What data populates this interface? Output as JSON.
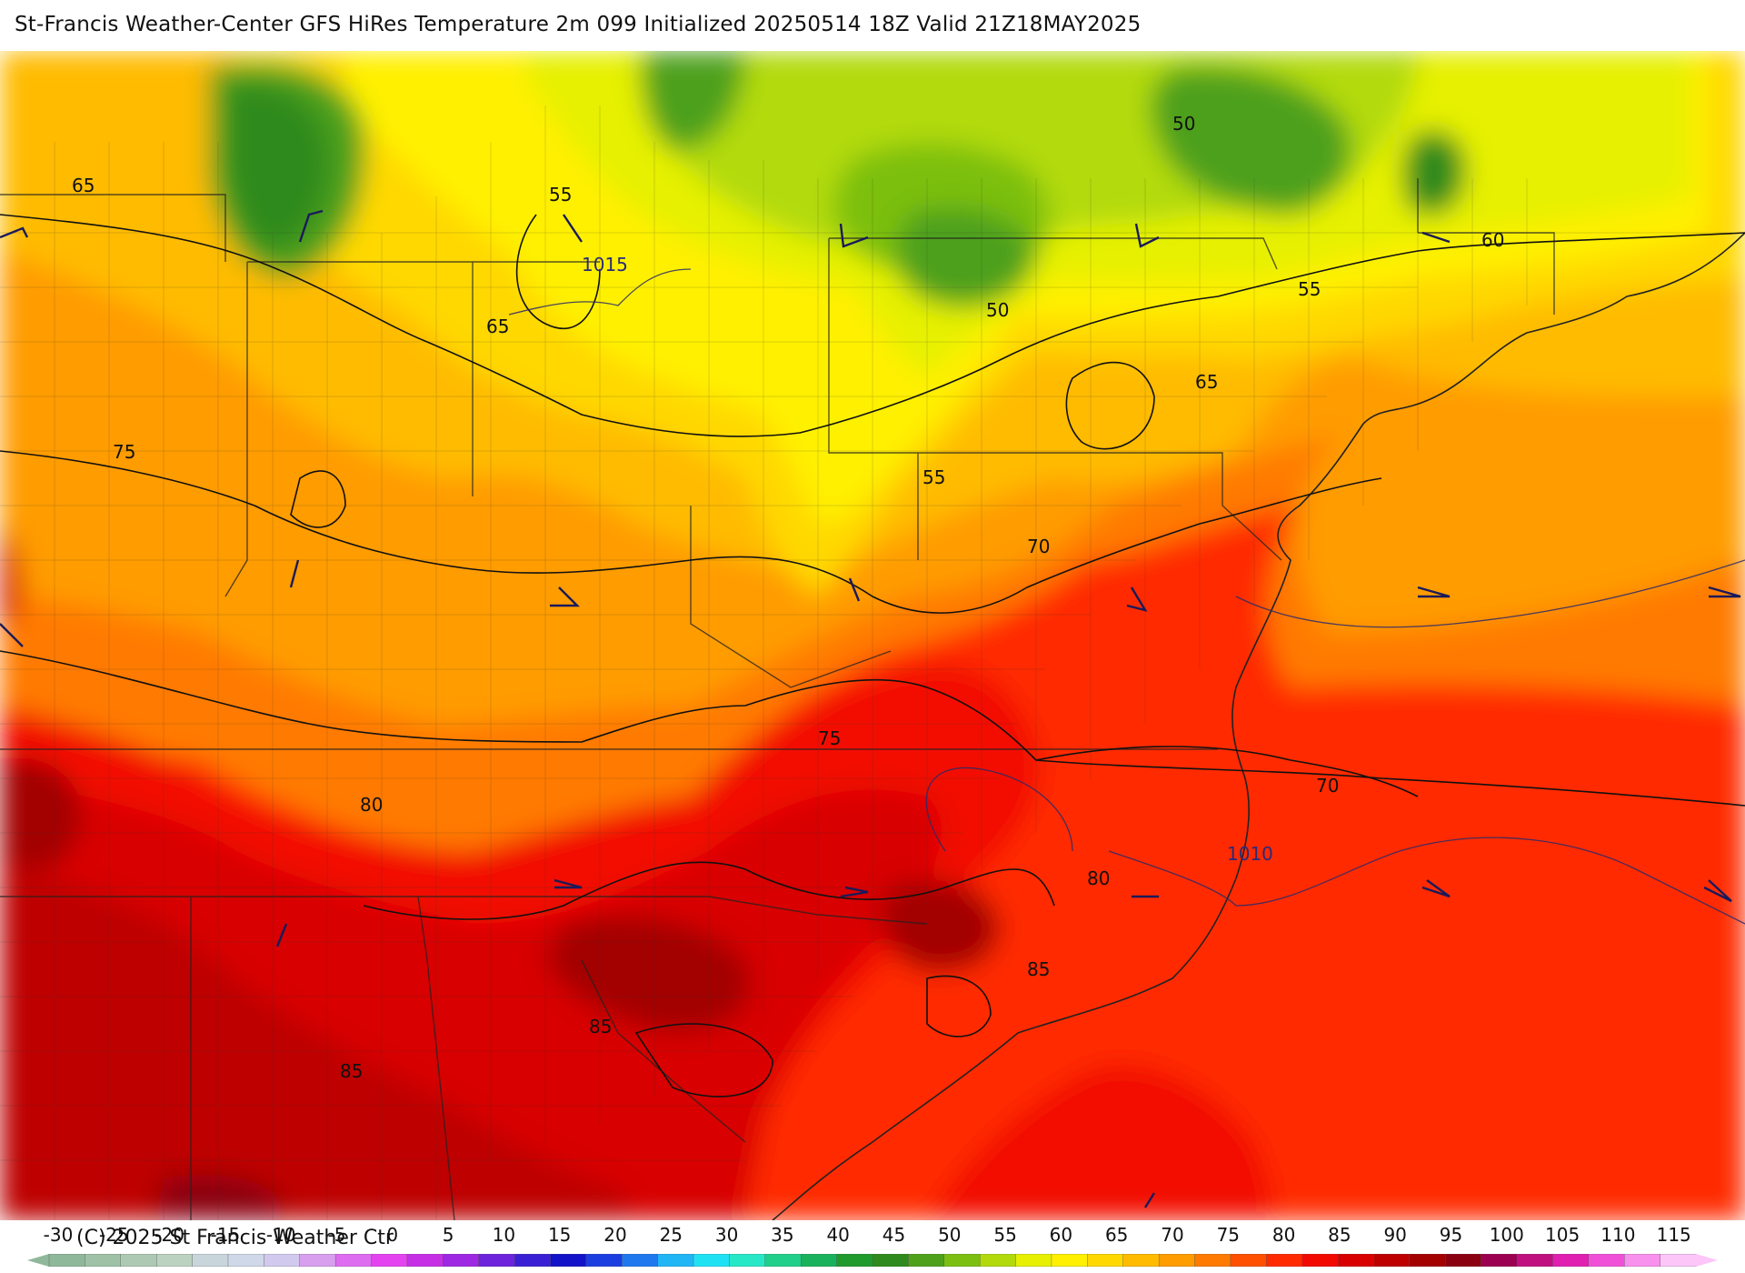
{
  "title": "St-Francis Weather-Center GFS HiRes Temperature 2m  099 Initialized 20250514 18Z Valid 21Z18MAY2025",
  "copyright": "(C) 2025 St Francis Weather Ctr",
  "colorbar": {
    "labels": [
      "-30",
      "-25",
      "-20",
      "-15",
      "-10",
      "-5",
      "0",
      "5",
      "10",
      "15",
      "20",
      "25",
      "30",
      "35",
      "40",
      "45",
      "50",
      "55",
      "60",
      "65",
      "70",
      "75",
      "80",
      "85",
      "90",
      "95",
      "100",
      "105",
      "110",
      "115"
    ],
    "colors": [
      "#8fb89a",
      "#9fc2a6",
      "#adc9b3",
      "#bcd2c1",
      "#c8d6dc",
      "#cfd8e8",
      "#d2c9ee",
      "#d79fee",
      "#de6cf0",
      "#e442f0",
      "#c62ee6",
      "#9d27e2",
      "#6d22dc",
      "#3a20d4",
      "#1212c8",
      "#1a3ee0",
      "#1f78ee",
      "#20b6f6",
      "#1ee2f4",
      "#26e8c6",
      "#1fcf8a",
      "#19b25c",
      "#1f9a2c",
      "#2e8a1c",
      "#4ea01a",
      "#7cbf10",
      "#b2da0a",
      "#e6f000",
      "#fff000",
      "#ffd800",
      "#ffbb00",
      "#ff9c00",
      "#ff7a00",
      "#ff5000",
      "#ff2a00",
      "#f20a00",
      "#d80000",
      "#be0000",
      "#a30000",
      "#8a0010",
      "#9c0050",
      "#c01080",
      "#e020b0",
      "#f050d8",
      "#f890ee",
      "#fcc6f8"
    ]
  },
  "contour_labels": [
    {
      "text": "65",
      "kind": "temperature"
    },
    {
      "text": "55",
      "kind": "temperature"
    },
    {
      "text": "1015",
      "kind": "isobar"
    },
    {
      "text": "65",
      "kind": "temperature"
    },
    {
      "text": "50",
      "kind": "temperature"
    },
    {
      "text": "60",
      "kind": "temperature"
    },
    {
      "text": "50",
      "kind": "temperature"
    },
    {
      "text": "55",
      "kind": "temperature"
    },
    {
      "text": "65",
      "kind": "temperature"
    },
    {
      "text": "75",
      "kind": "temperature"
    },
    {
      "text": "55",
      "kind": "temperature"
    },
    {
      "text": "70",
      "kind": "temperature"
    },
    {
      "text": "75",
      "kind": "temperature"
    },
    {
      "text": "70",
      "kind": "temperature"
    },
    {
      "text": "80",
      "kind": "temperature"
    },
    {
      "text": "1010",
      "kind": "isobar"
    },
    {
      "text": "80",
      "kind": "temperature"
    },
    {
      "text": "85",
      "kind": "temperature"
    },
    {
      "text": "85",
      "kind": "temperature"
    },
    {
      "text": "85",
      "kind": "temperature"
    }
  ]
}
